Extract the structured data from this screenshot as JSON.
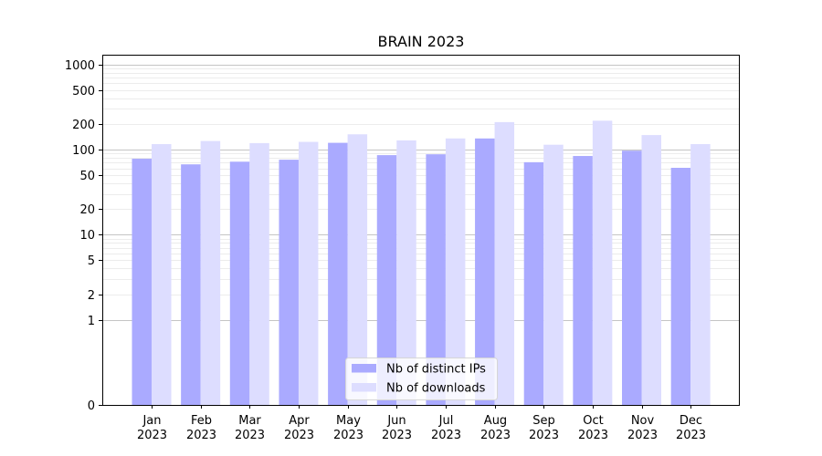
{
  "chart_data": {
    "type": "bar",
    "title": "BRAIN 2023",
    "xlabel": "",
    "ylabel": "",
    "yscale": "symlog",
    "ylim": [
      0,
      1300
    ],
    "yticks": [
      0,
      1,
      2,
      5,
      10,
      20,
      50,
      100,
      200,
      500,
      1000
    ],
    "grid": true,
    "legend_position": "lower center",
    "categories": [
      "Jan\n2023",
      "Feb\n2023",
      "Mar\n2023",
      "Apr\n2023",
      "May\n2023",
      "Jun\n2023",
      "Jul\n2023",
      "Aug\n2023",
      "Sep\n2023",
      "Oct\n2023",
      "Nov\n2023",
      "Dec\n2023"
    ],
    "series": [
      {
        "name": "Nb of distinct IPs",
        "color": "#aaaaff",
        "values": [
          78,
          67,
          72,
          76,
          120,
          86,
          88,
          135,
          71,
          84,
          97,
          61
        ]
      },
      {
        "name": "Nb of downloads",
        "color": "#ddddff",
        "values": [
          116,
          126,
          119,
          123,
          151,
          128,
          135,
          210,
          114,
          218,
          148,
          116
        ]
      }
    ]
  }
}
